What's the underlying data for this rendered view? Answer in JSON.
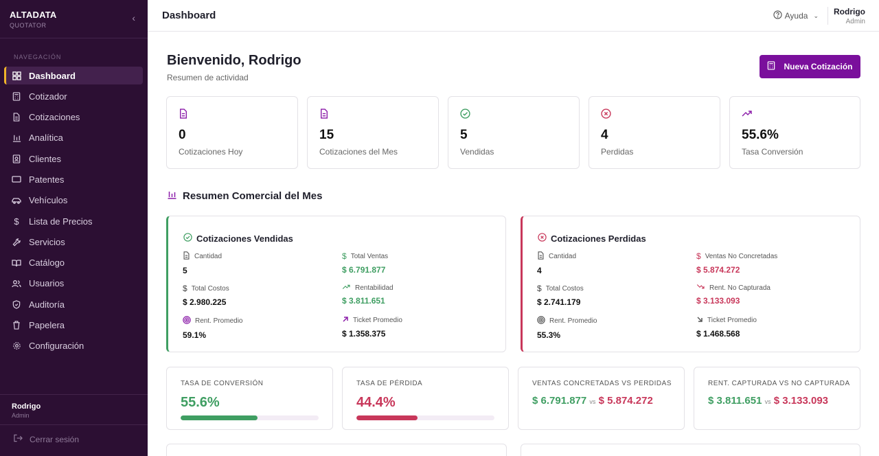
{
  "sidebar": {
    "brand": "ALTADATA",
    "brand_sub": "QUOTATOR",
    "section_label": "NAVEGACIÓN",
    "items": [
      {
        "label": "Dashboard",
        "icon": "grid-icon"
      },
      {
        "label": "Cotizador",
        "icon": "calculator-icon"
      },
      {
        "label": "Cotizaciones",
        "icon": "document-icon"
      },
      {
        "label": "Analítica",
        "icon": "bar-chart-icon"
      },
      {
        "label": "Clientes",
        "icon": "contact-card-icon"
      },
      {
        "label": "Patentes",
        "icon": "plate-icon"
      },
      {
        "label": "Vehículos",
        "icon": "car-icon"
      },
      {
        "label": "Lista de Precios",
        "icon": "dollar-icon"
      },
      {
        "label": "Servicios",
        "icon": "wrench-icon"
      },
      {
        "label": "Catálogo",
        "icon": "book-icon"
      },
      {
        "label": "Usuarios",
        "icon": "users-icon"
      },
      {
        "label": "Auditoría",
        "icon": "shield-icon"
      },
      {
        "label": "Papelera",
        "icon": "trash-icon"
      },
      {
        "label": "Configuración",
        "icon": "gear-icon"
      }
    ],
    "user_name": "Rodrigo",
    "user_role": "Admin",
    "logout": "Cerrar sesión"
  },
  "topbar": {
    "title": "Dashboard",
    "help": "Ayuda",
    "user_name": "Rodrigo",
    "user_role": "Admin"
  },
  "header": {
    "welcome": "Bienvenido, Rodrigo",
    "subtitle": "Resumen de actividad",
    "new_button": "Nueva Cotización"
  },
  "stats": [
    {
      "value": "0",
      "label": "Cotizaciones Hoy",
      "icon": "document-icon",
      "color": "#8a1aa8"
    },
    {
      "value": "15",
      "label": "Cotizaciones del Mes",
      "icon": "document-icon",
      "color": "#8a1aa8"
    },
    {
      "value": "5",
      "label": "Vendidas",
      "icon": "check-circle-icon",
      "color": "#3f9e62"
    },
    {
      "value": "4",
      "label": "Perdidas",
      "icon": "x-circle-icon",
      "color": "#c8375a"
    },
    {
      "value": "55.6%",
      "label": "Tasa Conversión",
      "icon": "trending-up-icon",
      "color": "#8a1aa8"
    }
  ],
  "section_title": "Resumen Comercial del Mes",
  "sold": {
    "title": "Cotizaciones Vendidas",
    "cells": [
      {
        "label": "Cantidad",
        "value": "5"
      },
      {
        "label": "Total Ventas",
        "value": "$ 6.791.877"
      },
      {
        "label": "Total Costos",
        "value": "$ 2.980.225"
      },
      {
        "label": "Rentabilidad",
        "value": "$ 3.811.651"
      },
      {
        "label": "Rent. Promedio",
        "value": "59.1%"
      },
      {
        "label": "Ticket Promedio",
        "value": "$ 1.358.375"
      }
    ]
  },
  "lost": {
    "title": "Cotizaciones Perdidas",
    "cells": [
      {
        "label": "Cantidad",
        "value": "4"
      },
      {
        "label": "Ventas No Concretadas",
        "value": "$ 5.874.272"
      },
      {
        "label": "Total Costos",
        "value": "$ 2.741.179"
      },
      {
        "label": "Rent. No Capturada",
        "value": "$ 3.133.093"
      },
      {
        "label": "Rent. Promedio",
        "value": "55.3%"
      },
      {
        "label": "Ticket Promedio",
        "value": "$ 1.468.568"
      }
    ]
  },
  "kpis": {
    "conversion": {
      "label": "TASA DE CONVERSIÓN",
      "value": "55.6%",
      "fraction": 0.556,
      "color": "#3f9e62"
    },
    "loss": {
      "label": "TASA DE PÉRDIDA",
      "value": "44.4%",
      "fraction": 0.444,
      "color": "#c8375a"
    },
    "sales_vs": {
      "label": "VENTAS CONCRETADAS VS PERDIDAS",
      "a": "$ 6.791.877",
      "vs": "vs",
      "b": "$ 5.874.272"
    },
    "rent_vs": {
      "label": "RENT. CAPTURADA VS NO CAPTURADA",
      "a": "$ 3.811.651",
      "vs": "vs",
      "b": "$ 3.133.093"
    }
  }
}
